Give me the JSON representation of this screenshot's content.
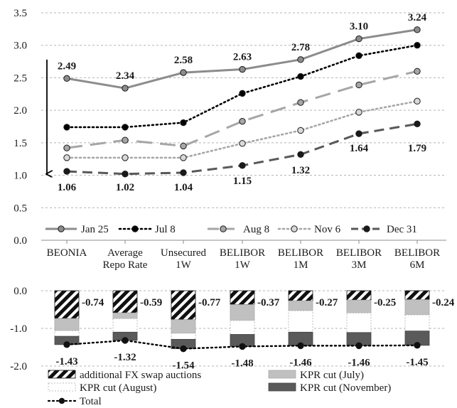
{
  "chart_data": [
    {
      "type": "line",
      "categories": [
        [
          "BEONIA"
        ],
        [
          "Average",
          "Repo Rate"
        ],
        [
          "Unsecured",
          "1W"
        ],
        [
          "BELIBOR",
          "1W"
        ],
        [
          "BELIBOR",
          "1M"
        ],
        [
          "BELIBOR",
          "3M"
        ],
        [
          "BELIBOR",
          "6M"
        ]
      ],
      "ylim": [
        0,
        3.5
      ],
      "yticks": [
        "0.0",
        "0.5",
        "1.0",
        "1.5",
        "2.0",
        "2.5",
        "3.0",
        "3.5"
      ],
      "grid": true,
      "legend_position": "inside-bottom",
      "series": [
        {
          "name": "Jan 25",
          "values": [
            2.49,
            2.34,
            2.58,
            2.63,
            2.78,
            3.1,
            3.24
          ],
          "labels": [
            "2.49",
            "2.34",
            "2.58",
            "2.63",
            "2.78",
            "3.10",
            "3.24"
          ],
          "color": "#8c8c8c",
          "dash": "solid",
          "marker_fill": "#8c8c8c"
        },
        {
          "name": "Jul 8",
          "values": [
            1.74,
            1.74,
            1.81,
            2.26,
            2.52,
            2.84,
            3.0
          ],
          "color": "#000000",
          "dash": "dotted",
          "marker_fill": "#000000"
        },
        {
          "name": "Aug 8",
          "values": [
            1.42,
            1.54,
            1.45,
            1.83,
            2.12,
            2.39,
            2.6
          ],
          "color": "#a6a6a6",
          "dash": "long-dash",
          "marker_fill": "#a6a6a6"
        },
        {
          "name": "Nov 6",
          "values": [
            1.27,
            1.27,
            1.27,
            1.49,
            1.69,
            1.97,
            2.14
          ],
          "color": "#a6a6a6",
          "dash": "dotted",
          "marker_fill": "#d9d9d9"
        },
        {
          "name": "Dec 31",
          "values": [
            1.06,
            1.02,
            1.04,
            1.15,
            1.32,
            1.64,
            1.79
          ],
          "labels": [
            "1.06",
            "1.02",
            "1.04",
            "1.15",
            "1.32",
            "1.64",
            "1.79"
          ],
          "color": "#595959",
          "dash": "dashed",
          "marker_fill": "#1a1a1a"
        }
      ],
      "annotations": [
        "downward arrow from Jan 25 to Dec 31 at BEONIA"
      ]
    },
    {
      "type": "bar",
      "stacked": true,
      "categories": [
        "BEONIA",
        "Average Repo Rate",
        "Unsecured 1W",
        "BELIBOR 1W",
        "BELIBOR 1M",
        "BELIBOR 3M",
        "BELIBOR 6M"
      ],
      "ylim": [
        -2.0,
        0.0
      ],
      "yticks": [
        "0.0",
        "-1.0",
        "-2.0"
      ],
      "grid": true,
      "series": [
        {
          "name": "additional FX swap auctions",
          "values": [
            -0.74,
            -0.59,
            -0.77,
            -0.37,
            -0.27,
            -0.25,
            -0.24
          ],
          "labels": [
            "-0.74",
            "-0.59",
            "-0.77",
            "-0.37",
            "-0.27",
            "-0.25",
            "-0.24"
          ],
          "pattern": "black-diagonal-stripes"
        },
        {
          "name": "KPR cut (July)",
          "values": [
            -0.32,
            -0.15,
            -0.36,
            -0.42,
            -0.26,
            -0.34,
            -0.4
          ],
          "color": "#c0c0c0"
        },
        {
          "name": "KPR cut (August)",
          "values": [
            -0.15,
            -0.36,
            -0.16,
            -0.37,
            -0.57,
            -0.52,
            -0.43
          ],
          "color": "#ffffff"
        },
        {
          "name": "KPR cut (November)",
          "values": [
            -0.22,
            -0.22,
            -0.25,
            -0.32,
            -0.36,
            -0.35,
            -0.38
          ],
          "color": "#5a5a5a"
        }
      ],
      "total": {
        "name": "Total",
        "values": [
          -1.43,
          -1.32,
          -1.54,
          -1.48,
          -1.46,
          -1.46,
          -1.45
        ],
        "labels": [
          "-1.43",
          "-1.32",
          "-1.54",
          "-1.48",
          "-1.46",
          "-1.46",
          "-1.45"
        ],
        "color": "#000000"
      },
      "legend_position": "bottom"
    }
  ]
}
